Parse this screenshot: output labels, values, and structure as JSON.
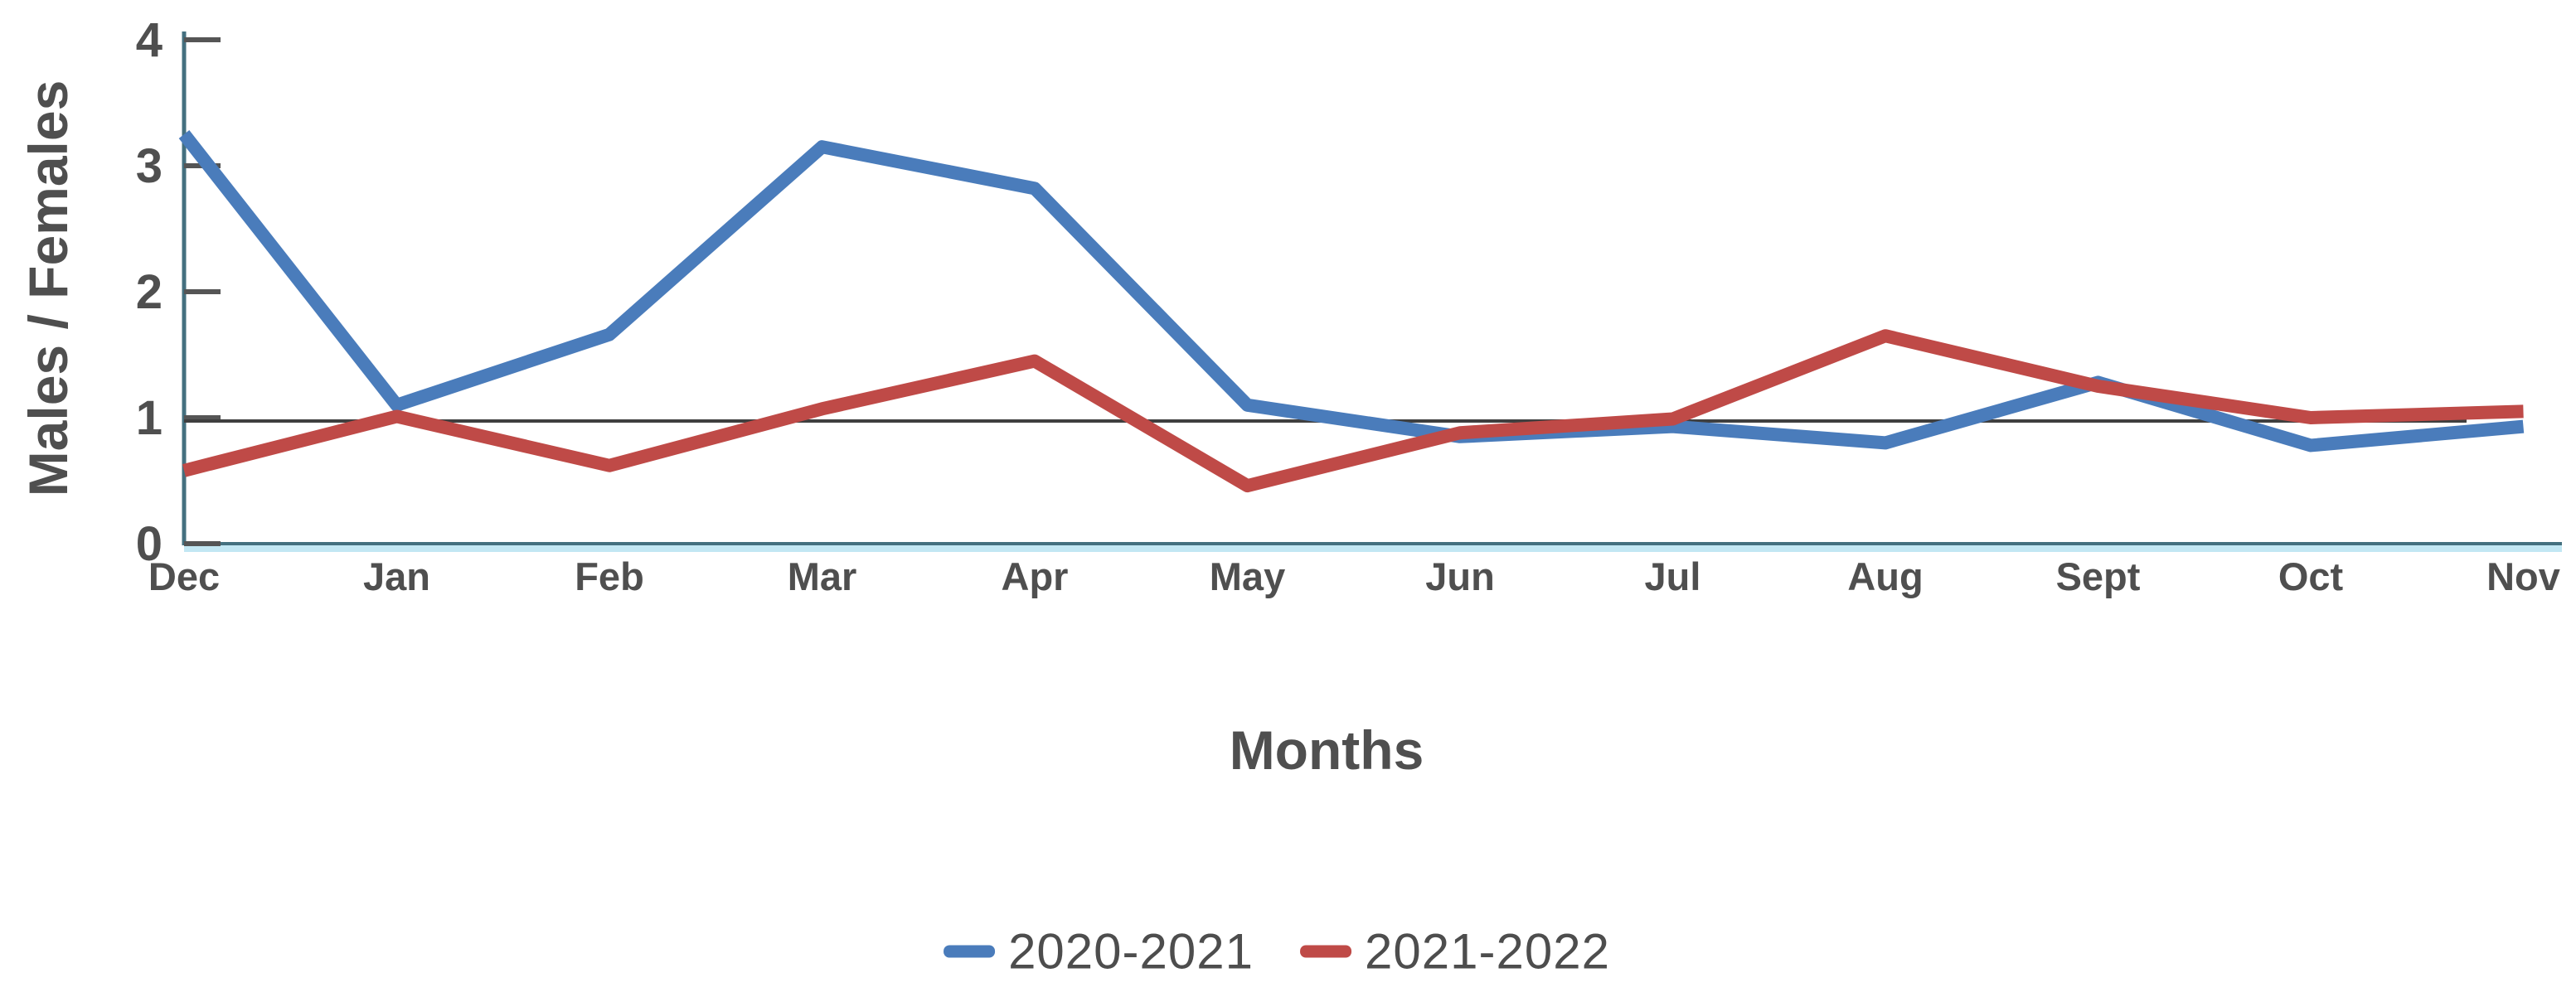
{
  "chart_data": {
    "type": "line",
    "title": "",
    "categories": [
      "Dec",
      "Jan",
      "Feb",
      "Mar",
      "Apr",
      "May",
      "Jun",
      "Jul",
      "Aug",
      "Sept",
      "Oct",
      "Nov"
    ],
    "series": [
      {
        "name": "2020-2021",
        "color": "#4a7cbb",
        "values": [
          3.25,
          1.1,
          1.66,
          3.15,
          2.82,
          1.1,
          0.85,
          0.93,
          0.8,
          1.28,
          0.78,
          0.93
        ]
      },
      {
        "name": "2021-2022",
        "color": "#bf4a47",
        "values": [
          0.58,
          1.01,
          0.62,
          1.07,
          1.45,
          0.46,
          0.88,
          0.99,
          1.65,
          1.25,
          1.0,
          1.05
        ]
      }
    ],
    "xlabel": "Months",
    "ylabel": "Males / Females",
    "ylim": [
      0,
      4
    ],
    "yticks": [
      0,
      1,
      2,
      3,
      4
    ],
    "reference_line": {
      "value": 1,
      "color": "#3f3f3f"
    },
    "grid": "off",
    "legend_position": "bottom"
  },
  "styles": {
    "axis_line_color": "#44707f",
    "axis_underline_color": "#c2e7f3",
    "tick_text_color": "#4f4f4f",
    "month_text_color": "#4f4f4f",
    "tick_mark_color": "#555555"
  }
}
